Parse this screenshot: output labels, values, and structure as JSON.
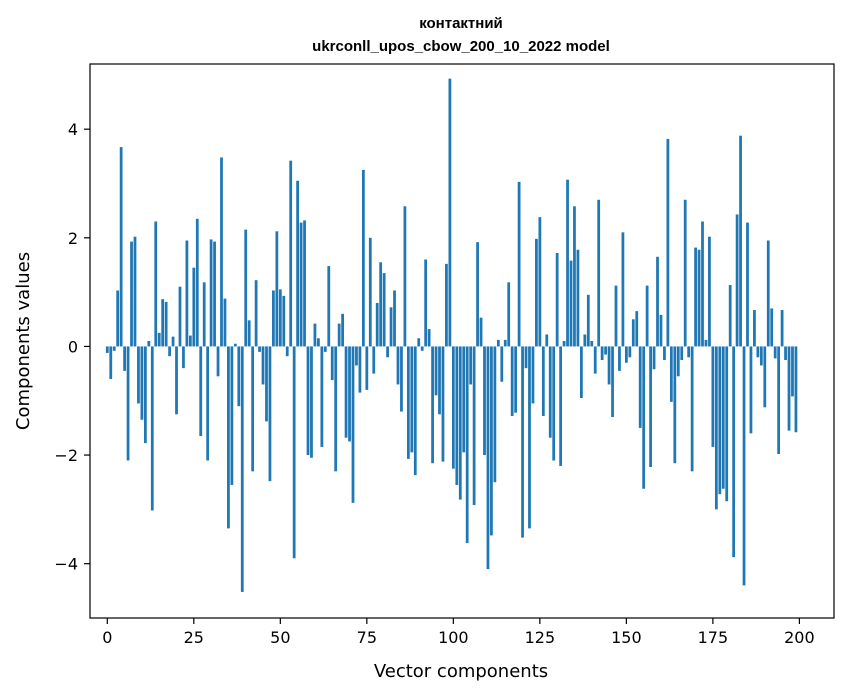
{
  "chart_data": {
    "type": "bar",
    "title_line1": "контактний",
    "title_line2": "ukrconll_upos_cbow_200_10_2022 model",
    "xlabel": "Vector components",
    "ylabel": "Components values",
    "xlim": [
      -5,
      210
    ],
    "ylim": [
      -5.0,
      5.2
    ],
    "xticks": [
      0,
      25,
      50,
      75,
      100,
      125,
      150,
      175,
      200
    ],
    "yticks": [
      -4,
      -2,
      0,
      2,
      4
    ],
    "ytick_labels": [
      "−4",
      "−2",
      "0",
      "2",
      "4"
    ],
    "grid": false,
    "bar_color": "#1f77b4",
    "values": [
      -0.12,
      -0.6,
      -0.08,
      1.03,
      3.67,
      -0.45,
      -2.1,
      1.93,
      2.02,
      -1.05,
      -1.35,
      -1.78,
      0.1,
      -3.02,
      2.3,
      0.25,
      0.87,
      0.82,
      -0.18,
      0.18,
      -1.25,
      1.1,
      -0.4,
      1.95,
      0.2,
      1.45,
      2.35,
      -1.65,
      1.18,
      -2.1,
      1.97,
      1.93,
      -0.55,
      3.48,
      0.88,
      -3.35,
      -2.55,
      0.05,
      -1.1,
      -4.52,
      2.15,
      0.48,
      -2.3,
      1.22,
      -0.1,
      -0.7,
      -1.38,
      -2.48,
      1.03,
      2.12,
      1.05,
      0.93,
      -0.18,
      3.42,
      -3.9,
      3.05,
      2.28,
      2.32,
      -2.0,
      -2.05,
      0.42,
      0.15,
      -1.85,
      -0.1,
      1.48,
      -0.62,
      -2.3,
      0.42,
      0.6,
      -1.68,
      -1.75,
      -2.88,
      -0.35,
      -0.85,
      3.25,
      -0.8,
      2.0,
      -0.5,
      0.8,
      1.55,
      1.35,
      -0.2,
      0.72,
      1.03,
      -0.7,
      -1.2,
      2.58,
      -2.07,
      -1.95,
      -2.37,
      0.15,
      -0.08,
      1.6,
      0.32,
      -2.15,
      -0.9,
      -1.25,
      -2.12,
      1.52,
      4.93,
      -2.25,
      -2.55,
      -2.82,
      -1.95,
      -3.62,
      -0.7,
      -2.92,
      1.92,
      0.53,
      -2.0,
      -4.1,
      -3.48,
      -2.5,
      0.12,
      -0.65,
      0.12,
      1.18,
      -1.28,
      -1.22,
      3.03,
      -3.52,
      -0.4,
      -3.35,
      -1.05,
      1.98,
      2.38,
      -1.28,
      0.22,
      -1.68,
      -2.1,
      1.72,
      -2.2,
      0.1,
      3.07,
      1.58,
      2.58,
      1.78,
      -0.95,
      0.22,
      0.95,
      0.1,
      -0.5,
      2.7,
      -0.25,
      -0.15,
      -0.7,
      -1.3,
      1.12,
      -0.45,
      2.1,
      -0.3,
      -0.2,
      0.5,
      0.65,
      -1.5,
      -2.62,
      1.12,
      -2.22,
      -0.42,
      1.65,
      0.58,
      -0.25,
      3.82,
      -1.02,
      -2.15,
      -0.55,
      -0.25,
      2.7,
      -0.2,
      -2.3,
      1.82,
      1.78,
      2.3,
      0.12,
      2.02,
      -1.85,
      -3.0,
      -2.72,
      -2.62,
      -2.85,
      1.13,
      -3.88,
      2.43,
      3.88,
      -4.4,
      2.28,
      -1.6,
      0.67,
      -0.2,
      -0.35,
      -1.12,
      1.95,
      0.7,
      -0.22,
      -1.98,
      0.67,
      -0.25,
      -1.55,
      -0.92,
      -1.58
    ]
  }
}
